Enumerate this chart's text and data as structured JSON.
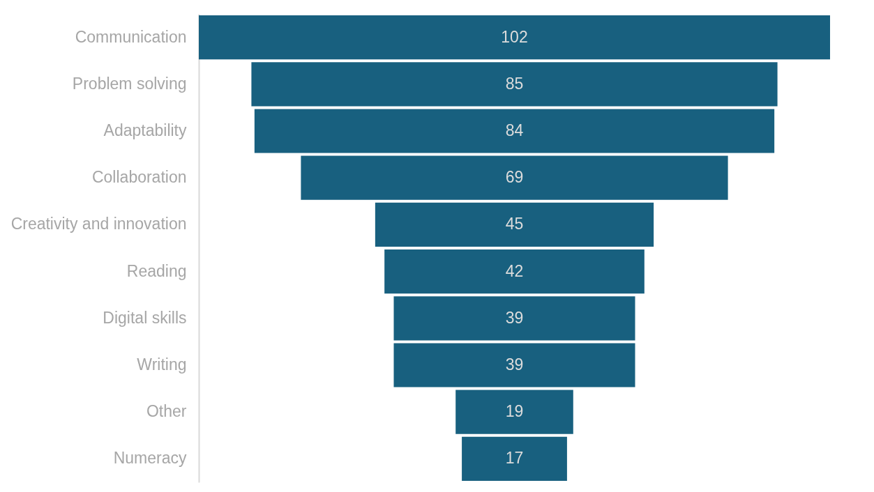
{
  "chart_data": {
    "type": "other",
    "categories": [
      "Communication",
      "Problem solving",
      "Adaptability",
      "Collaboration",
      "Creativity and innovation",
      "Reading",
      "Digital skills",
      "Writing",
      "Other",
      "Numeracy"
    ],
    "values": [
      102,
      85,
      84,
      69,
      45,
      42,
      39,
      39,
      19,
      17
    ],
    "color": "#18607f",
    "data_labels": true
  }
}
